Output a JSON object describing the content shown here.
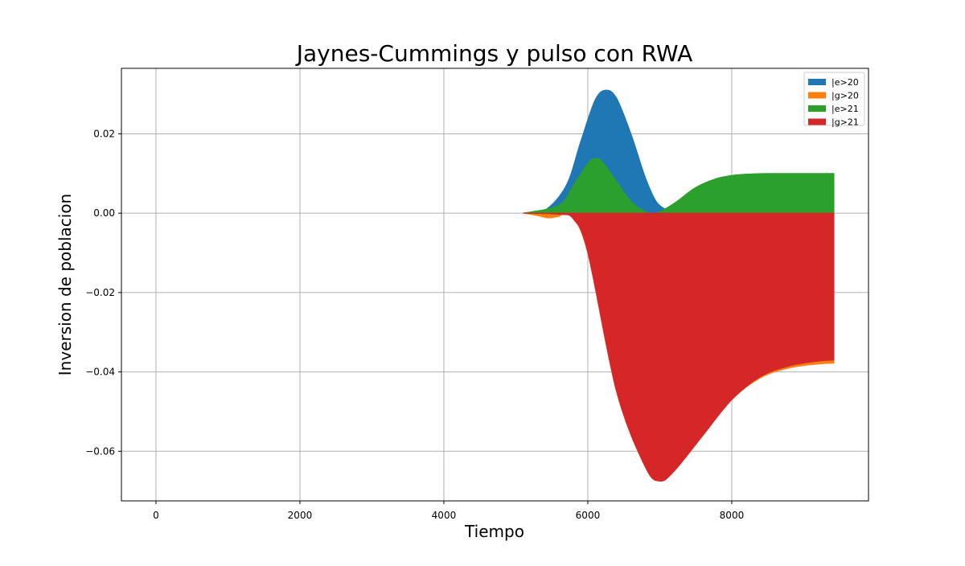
{
  "chart_data": {
    "type": "area",
    "title": "Jaynes-Cummings y pulso con RWA",
    "xlabel": "Tiempo",
    "ylabel": "Inversion de poblacion",
    "xlim": [
      -480,
      9900
    ],
    "ylim": [
      -0.0725,
      0.0365
    ],
    "x_ticks": [
      0,
      2000,
      4000,
      6000,
      8000
    ],
    "y_ticks": [
      0.02,
      0.0,
      -0.02,
      -0.04,
      -0.06
    ],
    "x_tick_labels": [
      "0",
      "2000",
      "4000",
      "6000",
      "8000"
    ],
    "y_tick_labels": [
      "0.02",
      "0.00",
      "−0.02",
      "−0.04",
      "−0.06"
    ],
    "grid": true,
    "legend_position": "top-right",
    "series": [
      {
        "name": "|e>20",
        "color": "#1f77b4",
        "x": [
          5100,
          5400,
          5700,
          5900,
          6100,
          6250,
          6400,
          6600,
          6800,
          6950,
          7100,
          7200,
          7300
        ],
        "values": [
          0.0,
          0.0007,
          0.007,
          0.018,
          0.0285,
          0.031,
          0.029,
          0.02,
          0.009,
          0.003,
          0.0008,
          0.0002,
          0.0
        ]
      },
      {
        "name": "|g>20",
        "color": "#ff7f0e",
        "x": [
          5100,
          5300,
          5450,
          5600,
          5750,
          6000,
          6400,
          6800,
          7000,
          7200,
          7600,
          8000,
          8400,
          8800,
          9200,
          9420
        ],
        "values": [
          0.0,
          -0.0006,
          -0.0012,
          -0.0008,
          0.0,
          -0.01,
          -0.045,
          -0.064,
          -0.0675,
          -0.065,
          -0.056,
          -0.047,
          -0.0415,
          -0.039,
          -0.038,
          -0.0378
        ]
      },
      {
        "name": "|e>21",
        "color": "#2ca02c",
        "x": [
          5100,
          5600,
          5800,
          6000,
          6100,
          6200,
          6400,
          6600,
          6800,
          6950,
          7200,
          7500,
          7800,
          8100,
          8500,
          9000,
          9420
        ],
        "values": [
          0.0,
          0.002,
          0.007,
          0.0125,
          0.0138,
          0.013,
          0.008,
          0.003,
          0.0004,
          0.0,
          0.0025,
          0.0065,
          0.0088,
          0.0097,
          0.01,
          0.01,
          0.01
        ]
      },
      {
        "name": "|g>21",
        "color": "#d62728",
        "x": [
          5100,
          5600,
          5800,
          6000,
          6400,
          6800,
          7000,
          7200,
          7600,
          8000,
          8400,
          8800,
          9200,
          9420
        ],
        "values": [
          0.0,
          -0.0003,
          -0.0015,
          -0.01,
          -0.045,
          -0.064,
          -0.0675,
          -0.065,
          -0.056,
          -0.047,
          -0.0412,
          -0.0385,
          -0.0373,
          -0.037
        ]
      }
    ]
  }
}
